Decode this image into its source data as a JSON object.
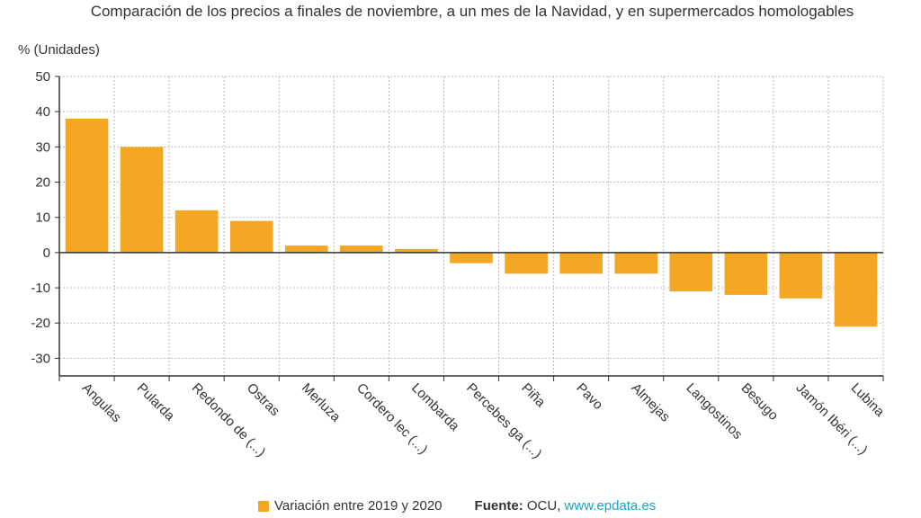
{
  "title": "Comparación de los precios a finales de noviembre, a un mes de la Navidad, y en supermercados homologables",
  "unit_label": "% (Unidades)",
  "legend": {
    "series_label": "Variación entre 2019 y 2020",
    "source_label": "Fuente:",
    "source_text": "OCU,",
    "source_link": "www.epdata.es"
  },
  "colors": {
    "bar": "#f5a623",
    "grid": "#bbbbbb",
    "zero_line": "#333333",
    "link": "#1aa3c4"
  },
  "chart_data": {
    "type": "bar",
    "title": "Comparación de los precios a finales de noviembre, a un mes de la Navidad, y en supermercados homologables",
    "ylabel": "% (Unidades)",
    "xlabel": "",
    "categories": [
      "Angulas",
      "Pularda",
      "Redondo de (...)",
      "Ostras",
      "Merluza",
      "Cordero lec (...)",
      "Lombarda",
      "Percebes ga (...)",
      "Piña",
      "Pavo",
      "Almejas",
      "Langostinos",
      "Besugo",
      "Jamón Ibéri (...)",
      "Lubina"
    ],
    "series": [
      {
        "name": "Variación entre 2019 y 2020",
        "values": [
          38,
          30,
          12,
          9,
          2,
          2,
          1,
          -3,
          -6,
          -6,
          -6,
          -11,
          -12,
          -13,
          -21
        ]
      }
    ],
    "ylim": [
      -35,
      50
    ],
    "yticks": [
      50,
      40,
      30,
      20,
      10,
      0,
      -10,
      -20,
      -30
    ],
    "grid": true,
    "legend_position": "bottom"
  }
}
